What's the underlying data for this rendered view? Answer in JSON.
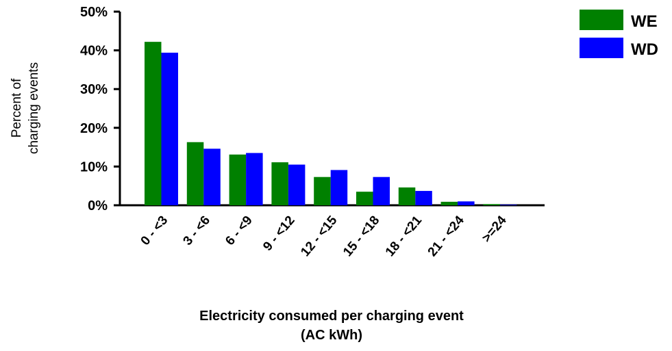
{
  "chart_data": {
    "type": "bar",
    "categories": [
      "0 - <3",
      "3 - <6",
      "6 - <9",
      "9 - <12",
      "12 - <15",
      "15 - <18",
      "18 - <21",
      "21 - <24",
      ">=24"
    ],
    "series": [
      {
        "name": "WE",
        "color": "#008000",
        "values": [
          42.2,
          16.3,
          13.1,
          11.1,
          7.3,
          3.5,
          4.6,
          0.9,
          0.3
        ]
      },
      {
        "name": "WD",
        "color": "#0000ff",
        "values": [
          39.4,
          14.6,
          13.5,
          10.5,
          9.1,
          7.3,
          3.7,
          1.0,
          0.1
        ]
      }
    ],
    "y_ticks": [
      "0%",
      "10%",
      "20%",
      "30%",
      "40%",
      "50%"
    ],
    "ylim": [
      0,
      50
    ],
    "ylabel_lines": [
      "Percent of",
      "charging events"
    ],
    "xlabel_lines": [
      "Electricity consumed per charging event",
      "(AC kWh)"
    ],
    "legend_position": "top-right",
    "grid": false
  }
}
